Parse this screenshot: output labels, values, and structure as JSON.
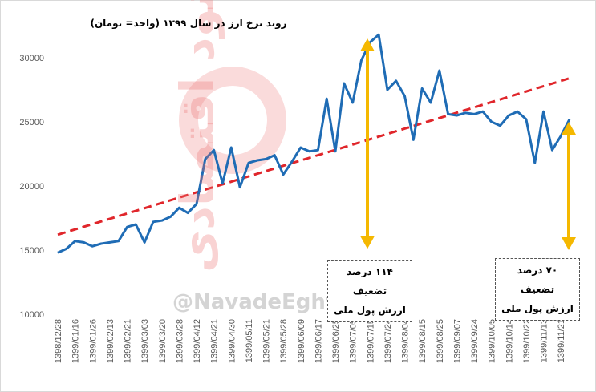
{
  "chart_data": {
    "type": "line",
    "title": "روند نرخ ارز در سال ۱۳۹۹ (واحد= تومان)",
    "categories": [
      "1398/12/28",
      null,
      "1399/01/16",
      null,
      "1399/01/26",
      null,
      "1399/02/13",
      null,
      "1399/02/21",
      null,
      "1399/03/03",
      null,
      "1399/03/20",
      null,
      "1399/03/28",
      null,
      "1399/04/12",
      null,
      "1399/04/21",
      null,
      "1399/04/30",
      null,
      "1399/05/11",
      null,
      "1399/05/21",
      null,
      "1399/05/28",
      null,
      "1399/06/09",
      null,
      "1399/06/17",
      null,
      "1399/06/25",
      null,
      "1399/07/05",
      null,
      "1399/07/15",
      null,
      "1399/07/24",
      null,
      "1399/08/04",
      null,
      "1399/08/15",
      null,
      "1399/08/25",
      null,
      "1399/09/07",
      null,
      "1399/09/24",
      null,
      "1399/10/05",
      null,
      "1399/10/14",
      null,
      "1399/10/22",
      null,
      "1399/11/13",
      null,
      "1399/11/21",
      null
    ],
    "series": [
      {
        "color": "#1f6cb5",
        "values": [
          14800,
          15100,
          15700,
          15600,
          15300,
          15500,
          15600,
          15700,
          16800,
          17000,
          15600,
          17200,
          17300,
          17600,
          18300,
          17900,
          18600,
          22100,
          22800,
          20200,
          23000,
          19900,
          21800,
          22000,
          22100,
          22400,
          20900,
          21900,
          23000,
          22700,
          22800,
          26800,
          22700,
          28000,
          26500,
          29800,
          31200,
          31800,
          27500,
          28200,
          27000,
          23600,
          27600,
          26500,
          29000,
          25600,
          25500,
          25700,
          25600,
          25800,
          25000,
          24700,
          25500,
          25800,
          25200,
          21800,
          25800,
          22800,
          23900,
          25200
        ]
      }
    ],
    "trend": {
      "color": "#e0262b",
      "values": [
        16200,
        28400
      ]
    },
    "ylim": [
      10000,
      32000
    ],
    "yticks": [
      10000,
      15000,
      20000,
      25000,
      30000
    ],
    "annotations": [
      {
        "text": [
          "۱۱۴ درصد تضعیف",
          "ارزش پول ملی"
        ],
        "from": 31500,
        "to": 15100,
        "color": "#f5b800"
      },
      {
        "text": [
          "۷۰ درصد تضعیف",
          "ارزش پول ملی"
        ],
        "from": 25000,
        "to": 15000,
        "color": "#f5b800"
      }
    ],
    "watermark": [
      "@NavadeEghtesadi",
      "نود اقتصادی"
    ]
  }
}
